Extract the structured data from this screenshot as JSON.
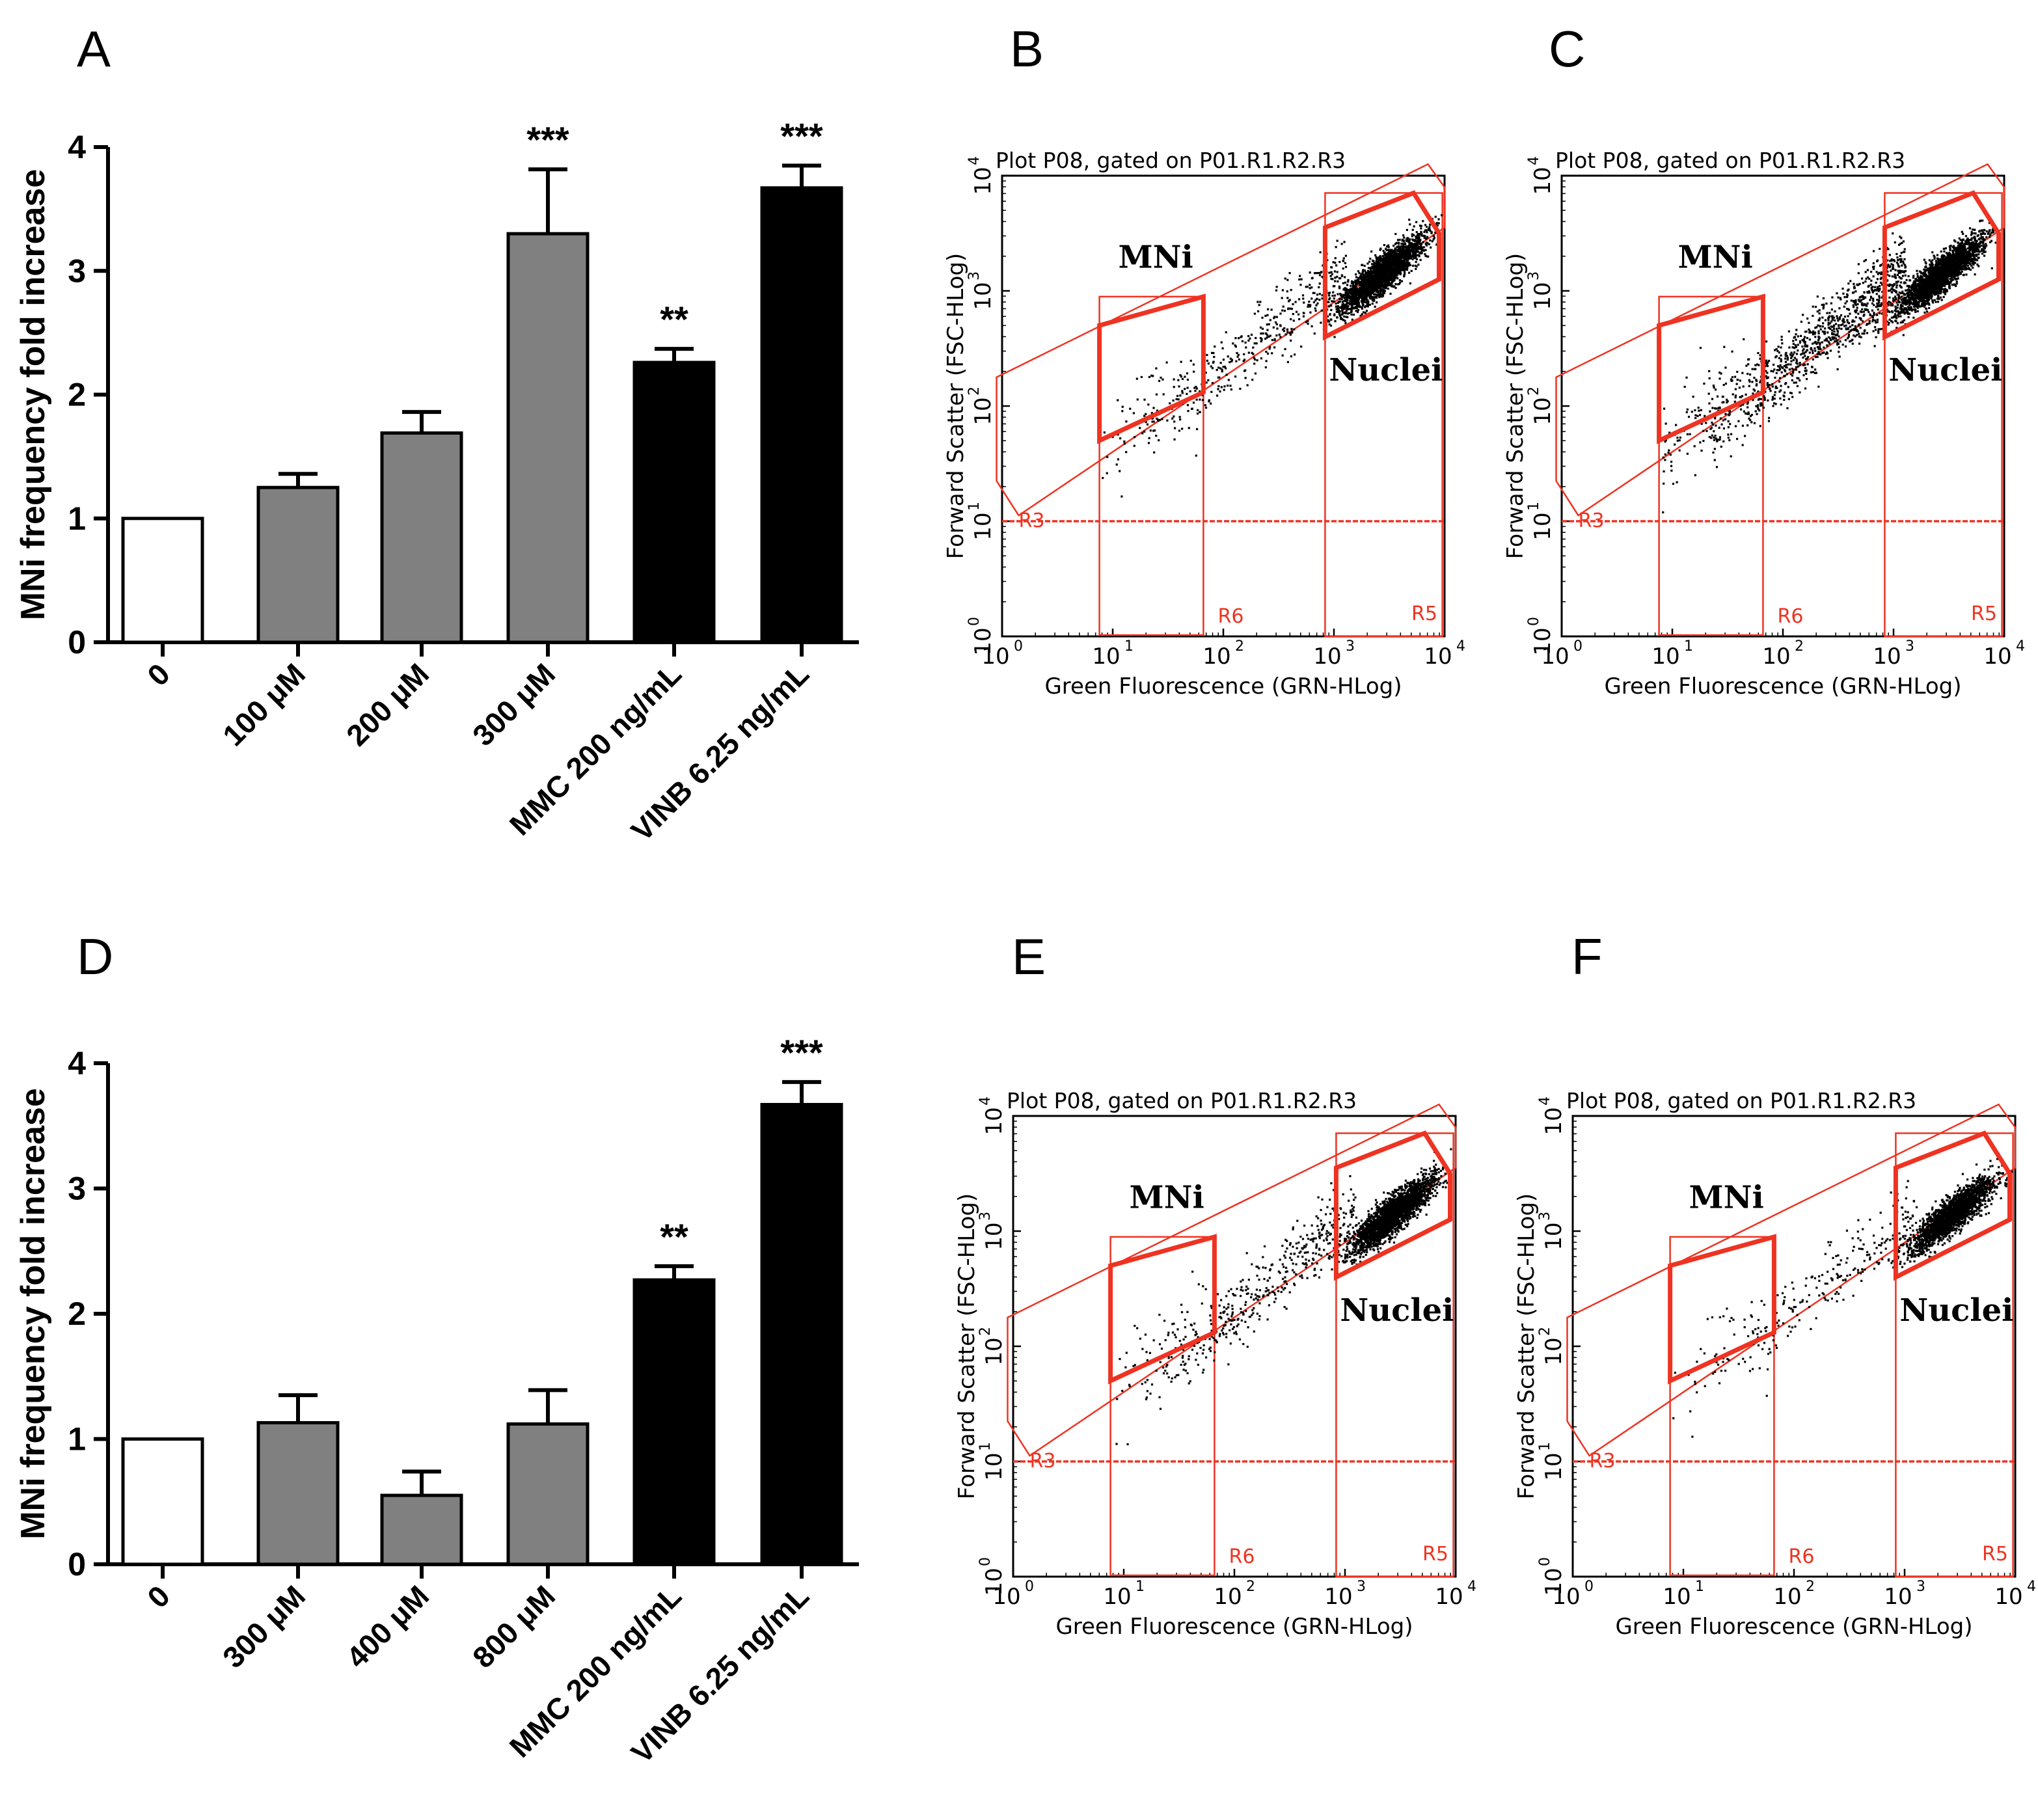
{
  "panel_labels": {
    "A": "A",
    "B": "B",
    "C": "C",
    "D": "D",
    "E": "E",
    "F": "F"
  },
  "chart_data": [
    {
      "panel": "A",
      "type": "bar",
      "ylabel": "MNi frequency fold increase",
      "ylim": [
        0,
        4
      ],
      "yticks": [
        "0",
        "1",
        "2",
        "3",
        "4"
      ],
      "categories": [
        "0",
        "100 μM",
        "200 μM",
        "300 μM",
        "MMC 200 ng/mL",
        "VINB 6.25 ng/mL"
      ],
      "values": [
        1.0,
        1.25,
        1.69,
        3.3,
        2.26,
        3.67
      ],
      "errors": [
        0,
        0.11,
        0.17,
        0.52,
        0.11,
        0.18
      ],
      "fills": [
        "#ffffff",
        "#808080",
        "#808080",
        "#808080",
        "#000000",
        "#000000"
      ],
      "significance": [
        "",
        "",
        "",
        "***",
        "**",
        "***"
      ]
    },
    {
      "panel": "D",
      "type": "bar",
      "ylabel": "MNi frequency fold increase",
      "ylim": [
        0,
        4
      ],
      "yticks": [
        "0",
        "1",
        "2",
        "3",
        "4"
      ],
      "categories": [
        "0",
        "300 μM",
        "400 μM",
        "800 μM",
        "MMC 200 ng/mL",
        "VINB 6.25 ng/mL"
      ],
      "values": [
        1.0,
        1.13,
        0.55,
        1.12,
        2.27,
        3.67
      ],
      "errors": [
        0,
        0.22,
        0.19,
        0.27,
        0.11,
        0.18
      ],
      "fills": [
        "#ffffff",
        "#808080",
        "#808080",
        "#808080",
        "#000000",
        "#000000"
      ],
      "significance": [
        "",
        "",
        "",
        "",
        "**",
        "***"
      ]
    },
    {
      "panel": "B",
      "type": "scatter",
      "title": "Plot P08, gated on P01.R1.R2.R3",
      "xlabel": "Green Fluorescence (GRN-HLog)",
      "ylabel": "Forward Scatter (FSC-HLog)",
      "xlim": [
        1,
        10000
      ],
      "ylim": [
        1,
        10000
      ],
      "xticks": [
        "10",
        "10",
        "10",
        "10",
        "10"
      ],
      "xtick_exps": [
        "0",
        "1",
        "2",
        "3",
        "4"
      ],
      "yticks": [
        "10",
        "10",
        "10",
        "10",
        "10"
      ],
      "ytick_exps": [
        "0",
        "1",
        "2",
        "3",
        "4"
      ],
      "gate_labels": {
        "mni": "MNi",
        "nuclei": "Nuclei"
      },
      "region_labels": {
        "r3": "R3",
        "r5": "R5",
        "r6": "R6"
      },
      "threshold_y": 10,
      "points": {
        "nuclei_density": 1.0,
        "bridge_density": 0.35,
        "mni_density": 0.25
      }
    },
    {
      "panel": "C",
      "type": "scatter",
      "title": "Plot P08, gated on P01.R1.R2.R3",
      "xlabel": "Green Fluorescence (GRN-HLog)",
      "ylabel": "Forward Scatter (FSC-HLog)",
      "xlim": [
        1,
        10000
      ],
      "ylim": [
        1,
        10000
      ],
      "xticks": [
        "10",
        "10",
        "10",
        "10",
        "10"
      ],
      "xtick_exps": [
        "0",
        "1",
        "2",
        "3",
        "4"
      ],
      "yticks": [
        "10",
        "10",
        "10",
        "10",
        "10"
      ],
      "ytick_exps": [
        "0",
        "1",
        "2",
        "3",
        "4"
      ],
      "gate_labels": {
        "mni": "MNi",
        "nuclei": "Nuclei"
      },
      "region_labels": {
        "r3": "R3",
        "r5": "R5",
        "r6": "R6"
      },
      "threshold_y": 10,
      "points": {
        "nuclei_density": 1.0,
        "bridge_density": 0.9,
        "mni_density": 0.45
      }
    },
    {
      "panel": "E",
      "type": "scatter",
      "title": "Plot P08, gated on P01.R1.R2.R3",
      "xlabel": "Green Fluorescence (GRN-HLog)",
      "ylabel": "Forward Scatter (FSC-HLog)",
      "xlim": [
        1,
        10000
      ],
      "ylim": [
        1,
        10000
      ],
      "xticks": [
        "10",
        "10",
        "10",
        "10",
        "10"
      ],
      "xtick_exps": [
        "0",
        "1",
        "2",
        "3",
        "4"
      ],
      "yticks": [
        "10",
        "10",
        "10",
        "10",
        "10"
      ],
      "ytick_exps": [
        "0",
        "1",
        "2",
        "3",
        "4"
      ],
      "gate_labels": {
        "mni": "MNi",
        "nuclei": "Nuclei"
      },
      "region_labels": {
        "r3": "R3",
        "r5": "R5",
        "r6": "R6"
      },
      "threshold_y": 10,
      "points": {
        "nuclei_density": 1.0,
        "bridge_density": 0.4,
        "mni_density": 0.25
      }
    },
    {
      "panel": "F",
      "type": "scatter",
      "title": "Plot P08, gated on P01.R1.R2.R3",
      "xlabel": "Green Fluorescence (GRN-HLog)",
      "ylabel": "Forward Scatter (FSC-HLog)",
      "xlim": [
        1,
        10000
      ],
      "ylim": [
        1,
        10000
      ],
      "xticks": [
        "10",
        "10",
        "10",
        "10",
        "10"
      ],
      "xtick_exps": [
        "0",
        "1",
        "2",
        "3",
        "4"
      ],
      "yticks": [
        "10",
        "10",
        "10",
        "10",
        "10"
      ],
      "ytick_exps": [
        "0",
        "1",
        "2",
        "3",
        "4"
      ],
      "gate_labels": {
        "mni": "MNi",
        "nuclei": "Nuclei"
      },
      "region_labels": {
        "r3": "R3",
        "r5": "R5",
        "r6": "R6"
      },
      "threshold_y": 10,
      "points": {
        "nuclei_density": 0.85,
        "bridge_density": 0.2,
        "mni_density": 0.15
      }
    }
  ]
}
